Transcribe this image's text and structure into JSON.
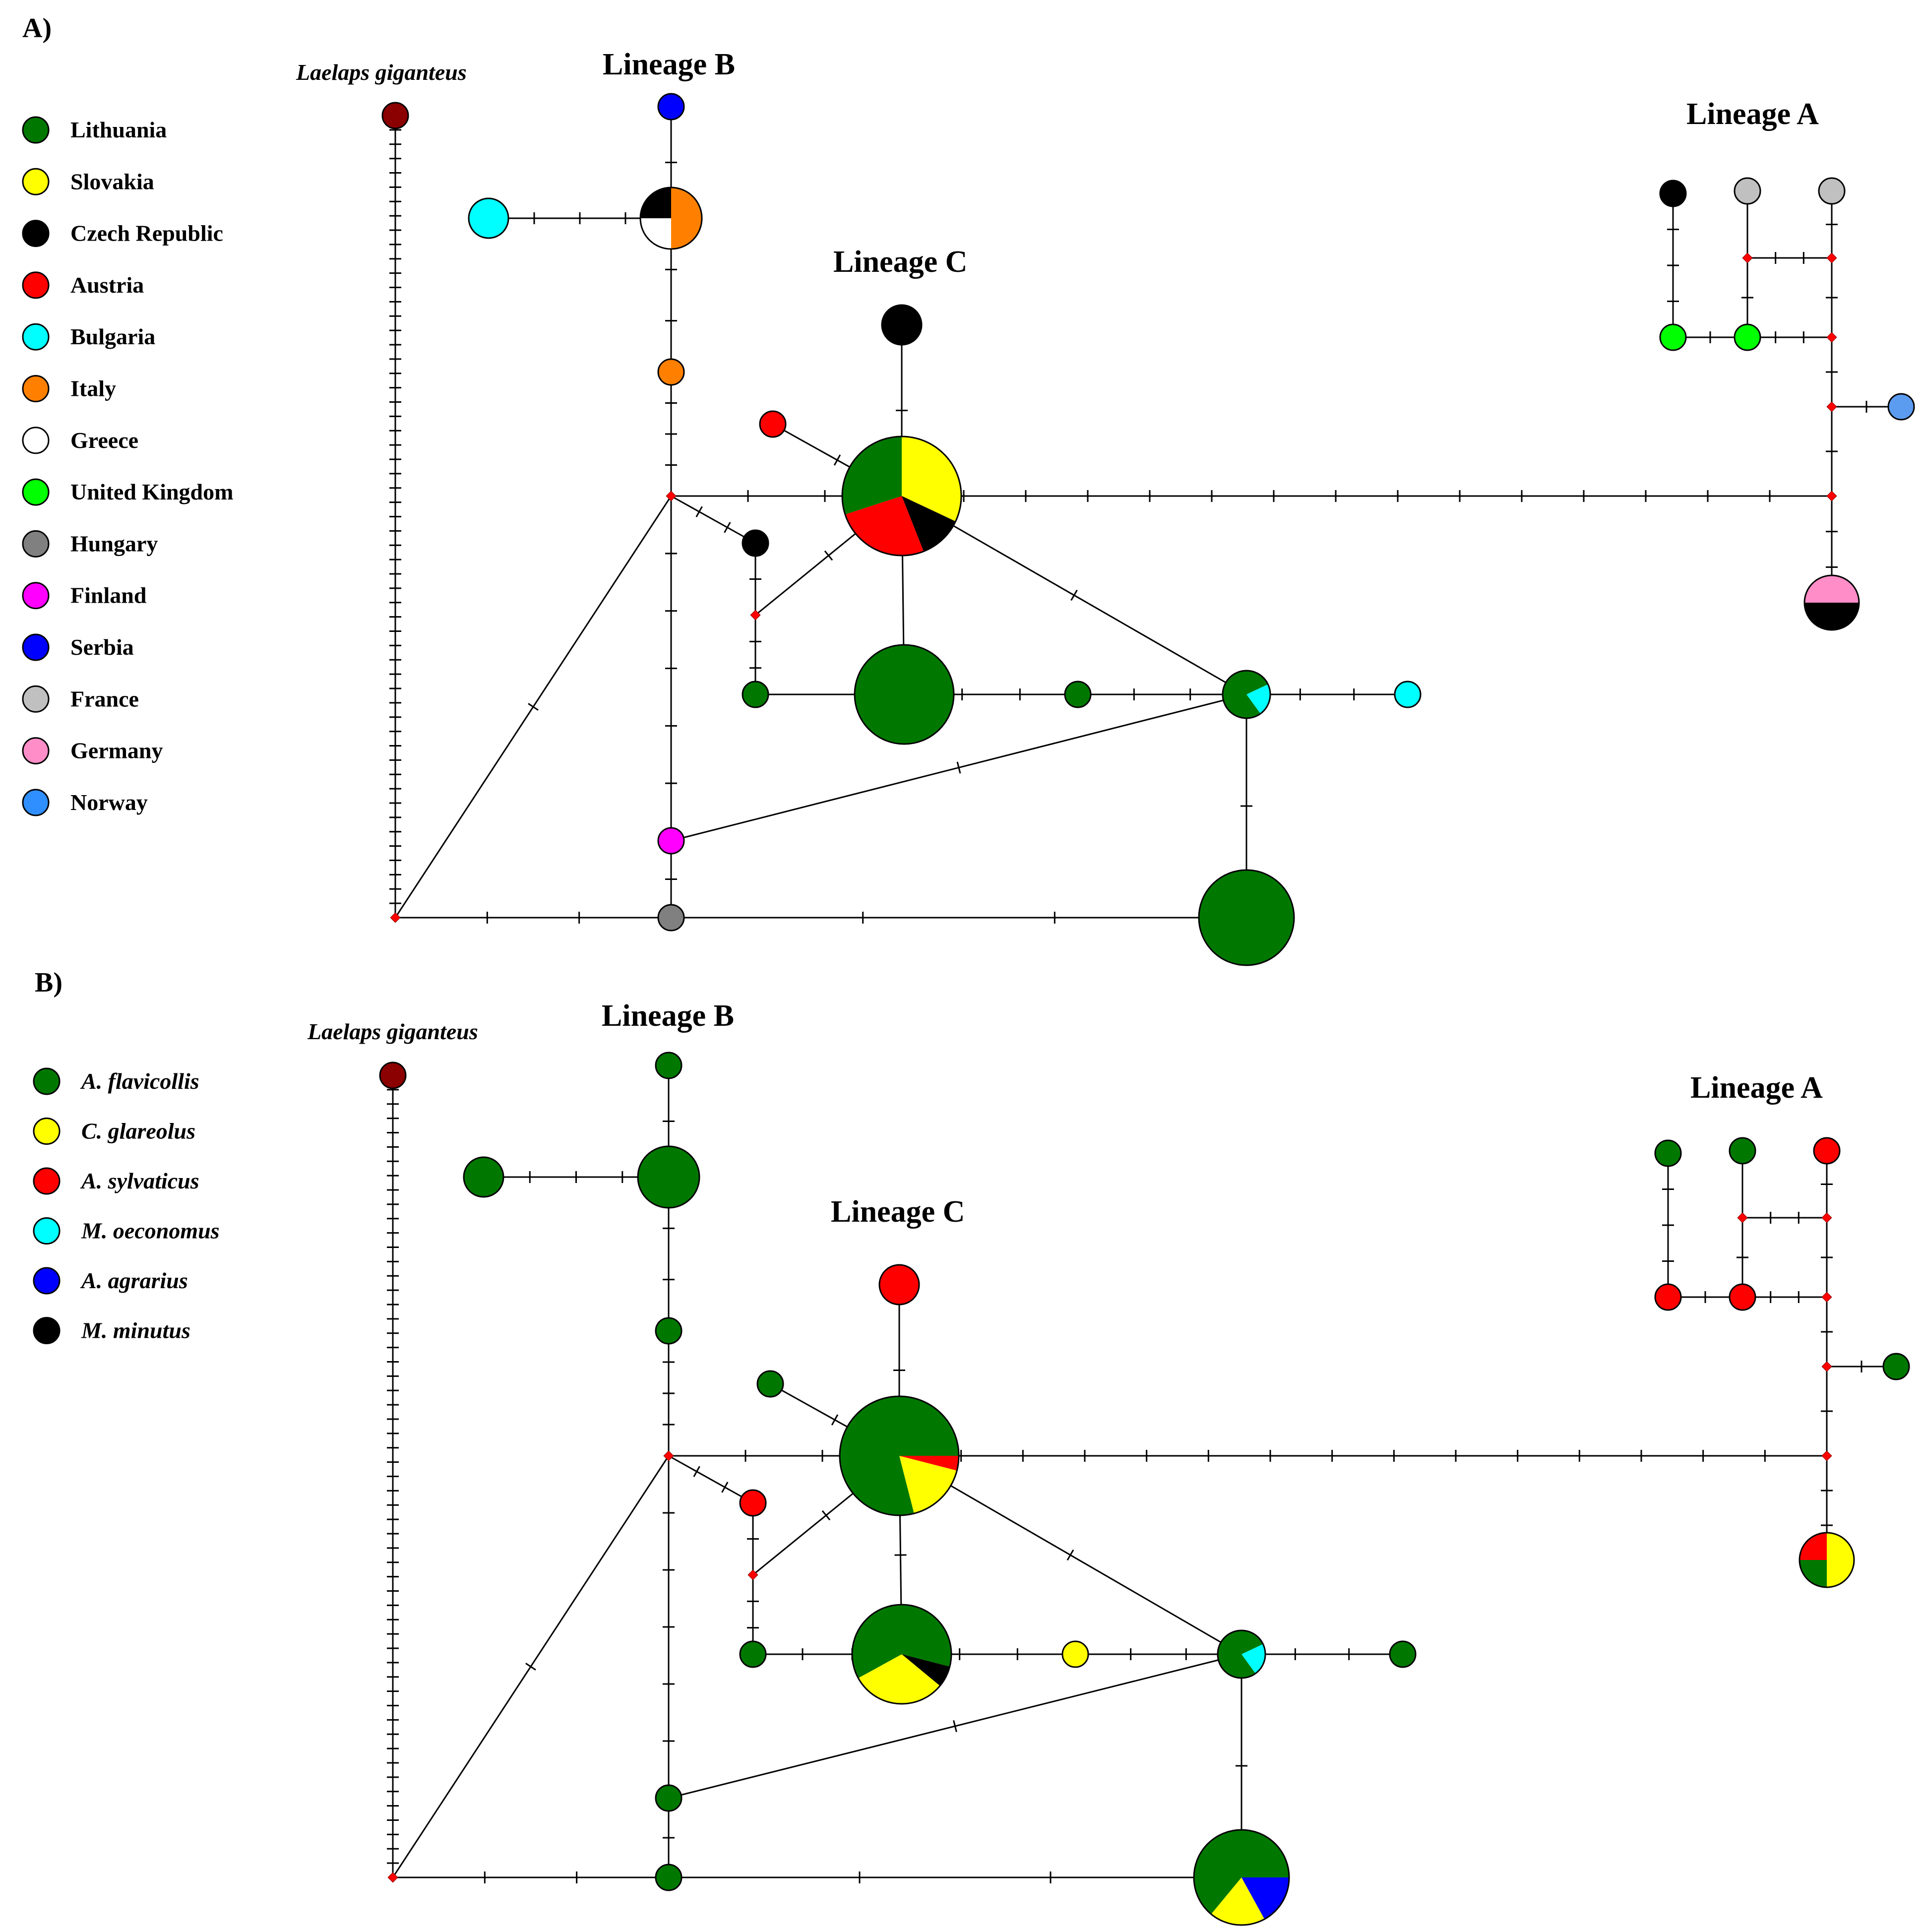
{
  "panel_a": {
    "label": "A)",
    "outgroup_label": "Laelaps giganteus",
    "lineage_b": "Lineage B",
    "lineage_c": "Lineage C",
    "lineage_a": "Lineage A",
    "legend": [
      {
        "name": "Lithuania",
        "color": "#007800"
      },
      {
        "name": "Slovakia",
        "color": "#ffff00"
      },
      {
        "name": "Czech Republic",
        "color": "#000000"
      },
      {
        "name": "Austria",
        "color": "#ff0000"
      },
      {
        "name": "Bulgaria",
        "color": "#00ffff"
      },
      {
        "name": "Italy",
        "color": "#ff8000"
      },
      {
        "name": "Greece",
        "color": "#ffffff"
      },
      {
        "name": "United Kingdom",
        "color": "#00ff00"
      },
      {
        "name": "Hungary",
        "color": "#808080"
      },
      {
        "name": "Finland",
        "color": "#ff00ff"
      },
      {
        "name": "Serbia",
        "color": "#0000ff"
      },
      {
        "name": "France",
        "color": "#c0c0c0"
      },
      {
        "name": "Germany",
        "color": "#ff8ec8"
      },
      {
        "name": "Norway",
        "color": "#2f8fff"
      }
    ]
  },
  "panel_b": {
    "label": "B)",
    "outgroup_label": "Laelaps giganteus",
    "lineage_b": "Lineage B",
    "lineage_c": "Lineage C",
    "lineage_a": "Lineage A",
    "legend": [
      {
        "name": "A. flavicollis",
        "color": "#007800"
      },
      {
        "name": "C. glareolus",
        "color": "#ffff00"
      },
      {
        "name": "A. sylvaticus",
        "color": "#ff0000"
      },
      {
        "name": "M. oeconomus",
        "color": "#00ffff"
      },
      {
        "name": "A. agrarius",
        "color": "#0000ff"
      },
      {
        "name": "M. minutus",
        "color": "#000000"
      }
    ]
  }
}
